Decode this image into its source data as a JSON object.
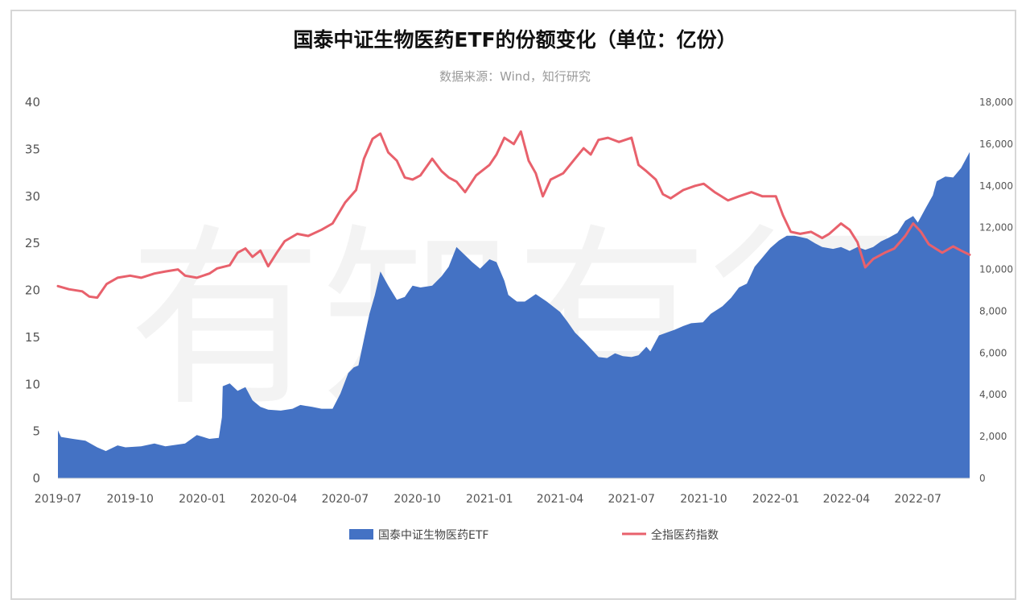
{
  "chart_data": {
    "type": "area+line",
    "title": "国泰中证生物医药ETF的份额变化（单位：亿份）",
    "subtitle": "数据来源：Wind，知行研究",
    "watermark": "有知有行",
    "x_ticks": [
      "2019-07",
      "2019-10",
      "2020-01",
      "2020-04",
      "2020-07",
      "2020-10",
      "2021-01",
      "2021-04",
      "2021-07",
      "2021-10",
      "2022-01",
      "2022-04",
      "2022-07"
    ],
    "y_left": {
      "range": [
        0,
        40
      ],
      "ticks": [
        "0",
        "5",
        "10",
        "15",
        "20",
        "25",
        "30",
        "35",
        "40"
      ]
    },
    "y_right": {
      "range": [
        0,
        18000
      ],
      "ticks": [
        "0",
        "2,000",
        "4,000",
        "6,000",
        "8,000",
        "10,000",
        "12,000",
        "14,000",
        "16,000",
        "18,000"
      ]
    },
    "series": [
      {
        "name": "国泰中证生物医药ETF",
        "type": "area",
        "axis": "left",
        "color": "#4472c4",
        "points": [
          [
            "2019-07-01",
            5.1
          ],
          [
            "2019-07-05",
            4.4
          ],
          [
            "2019-07-20",
            4.2
          ],
          [
            "2019-08-05",
            4.0
          ],
          [
            "2019-08-20",
            3.3
          ],
          [
            "2019-08-31",
            2.9
          ],
          [
            "2019-09-15",
            3.5
          ],
          [
            "2019-09-25",
            3.3
          ],
          [
            "2019-10-15",
            3.4
          ],
          [
            "2019-11-01",
            3.7
          ],
          [
            "2019-11-15",
            3.4
          ],
          [
            "2019-12-01",
            3.6
          ],
          [
            "2019-12-10",
            3.7
          ],
          [
            "2019-12-25",
            4.6
          ],
          [
            "2020-01-10",
            4.2
          ],
          [
            "2020-01-22",
            4.3
          ],
          [
            "2020-01-26",
            6.5
          ],
          [
            "2020-01-27",
            9.8
          ],
          [
            "2020-02-05",
            10.1
          ],
          [
            "2020-02-15",
            9.3
          ],
          [
            "2020-02-25",
            9.7
          ],
          [
            "2020-03-05",
            8.3
          ],
          [
            "2020-03-15",
            7.6
          ],
          [
            "2020-03-25",
            7.3
          ],
          [
            "2020-04-10",
            7.2
          ],
          [
            "2020-04-25",
            7.4
          ],
          [
            "2020-05-05",
            7.8
          ],
          [
            "2020-05-20",
            7.6
          ],
          [
            "2020-06-01",
            7.4
          ],
          [
            "2020-06-15",
            7.4
          ],
          [
            "2020-06-25",
            9.0
          ],
          [
            "2020-07-05",
            11.2
          ],
          [
            "2020-07-12",
            11.8
          ],
          [
            "2020-07-18",
            12.0
          ],
          [
            "2020-07-25",
            14.8
          ],
          [
            "2020-08-01",
            17.5
          ],
          [
            "2020-08-08",
            19.5
          ],
          [
            "2020-08-15",
            22.0
          ],
          [
            "2020-08-25",
            20.5
          ],
          [
            "2020-09-05",
            19.0
          ],
          [
            "2020-09-15",
            19.3
          ],
          [
            "2020-09-25",
            20.5
          ],
          [
            "2020-10-05",
            20.3
          ],
          [
            "2020-10-20",
            20.5
          ],
          [
            "2020-11-01",
            21.5
          ],
          [
            "2020-11-10",
            22.5
          ],
          [
            "2020-11-20",
            24.6
          ],
          [
            "2020-11-30",
            23.8
          ],
          [
            "2020-12-10",
            23.0
          ],
          [
            "2020-12-20",
            22.3
          ],
          [
            "2021-01-01",
            23.3
          ],
          [
            "2021-01-10",
            23.0
          ],
          [
            "2021-01-20",
            21.0
          ],
          [
            "2021-01-25",
            19.5
          ],
          [
            "2021-02-05",
            18.8
          ],
          [
            "2021-02-15",
            18.8
          ],
          [
            "2021-03-01",
            19.6
          ],
          [
            "2021-03-15",
            18.8
          ],
          [
            "2021-04-01",
            17.7
          ],
          [
            "2021-04-10",
            16.7
          ],
          [
            "2021-04-20",
            15.5
          ],
          [
            "2021-05-01",
            14.6
          ],
          [
            "2021-05-10",
            13.8
          ],
          [
            "2021-05-20",
            12.9
          ],
          [
            "2021-05-31",
            12.8
          ],
          [
            "2021-06-10",
            13.3
          ],
          [
            "2021-06-20",
            13.0
          ],
          [
            "2021-07-01",
            12.9
          ],
          [
            "2021-07-10",
            13.1
          ],
          [
            "2021-07-20",
            14.0
          ],
          [
            "2021-07-25",
            13.5
          ],
          [
            "2021-08-05",
            15.2
          ],
          [
            "2021-08-15",
            15.5
          ],
          [
            "2021-08-25",
            15.8
          ],
          [
            "2021-09-05",
            16.2
          ],
          [
            "2021-09-15",
            16.5
          ],
          [
            "2021-09-30",
            16.6
          ],
          [
            "2021-10-10",
            17.5
          ],
          [
            "2021-10-25",
            18.3
          ],
          [
            "2021-11-05",
            19.2
          ],
          [
            "2021-11-15",
            20.3
          ],
          [
            "2021-11-25",
            20.7
          ],
          [
            "2021-12-05",
            22.5
          ],
          [
            "2021-12-15",
            23.5
          ],
          [
            "2021-12-25",
            24.5
          ],
          [
            "2022-01-05",
            25.3
          ],
          [
            "2022-01-15",
            25.8
          ],
          [
            "2022-01-25",
            25.8
          ],
          [
            "2022-02-10",
            25.5
          ],
          [
            "2022-02-20",
            25.0
          ],
          [
            "2022-03-01",
            24.6
          ],
          [
            "2022-03-15",
            24.4
          ],
          [
            "2022-03-25",
            24.6
          ],
          [
            "2022-04-05",
            24.2
          ],
          [
            "2022-04-15",
            24.6
          ],
          [
            "2022-04-25",
            24.3
          ],
          [
            "2022-05-05",
            24.6
          ],
          [
            "2022-05-15",
            25.2
          ],
          [
            "2022-05-25",
            25.6
          ],
          [
            "2022-06-05",
            26.1
          ],
          [
            "2022-06-15",
            27.4
          ],
          [
            "2022-06-25",
            27.9
          ],
          [
            "2022-07-01",
            27.2
          ],
          [
            "2022-07-10",
            28.6
          ],
          [
            "2022-07-20",
            30.1
          ],
          [
            "2022-07-25",
            31.6
          ],
          [
            "2022-08-05",
            32.1
          ],
          [
            "2022-08-15",
            32.0
          ],
          [
            "2022-08-25",
            33.0
          ],
          [
            "2022-09-05",
            34.7
          ]
        ]
      },
      {
        "name": "全指医药指数",
        "type": "line",
        "axis": "right",
        "color": "#e8616c",
        "points": [
          [
            "2019-07-01",
            9200
          ],
          [
            "2019-07-15",
            9050
          ],
          [
            "2019-08-01",
            8950
          ],
          [
            "2019-08-10",
            8700
          ],
          [
            "2019-08-20",
            8650
          ],
          [
            "2019-09-01",
            9300
          ],
          [
            "2019-09-15",
            9600
          ],
          [
            "2019-10-01",
            9700
          ],
          [
            "2019-10-15",
            9600
          ],
          [
            "2019-11-01",
            9800
          ],
          [
            "2019-11-15",
            9900
          ],
          [
            "2019-12-01",
            10000
          ],
          [
            "2019-12-10",
            9700
          ],
          [
            "2019-12-25",
            9600
          ],
          [
            "2020-01-10",
            9800
          ],
          [
            "2020-01-20",
            10050
          ],
          [
            "2020-02-05",
            10200
          ],
          [
            "2020-02-15",
            10800
          ],
          [
            "2020-02-25",
            11000
          ],
          [
            "2020-03-05",
            10600
          ],
          [
            "2020-03-15",
            10900
          ],
          [
            "2020-03-25",
            10150
          ],
          [
            "2020-04-05",
            10800
          ],
          [
            "2020-04-15",
            11350
          ],
          [
            "2020-05-01",
            11700
          ],
          [
            "2020-05-15",
            11600
          ],
          [
            "2020-06-01",
            11900
          ],
          [
            "2020-06-15",
            12200
          ],
          [
            "2020-07-01",
            13200
          ],
          [
            "2020-07-15",
            13800
          ],
          [
            "2020-07-25",
            15300
          ],
          [
            "2020-08-05",
            16250
          ],
          [
            "2020-08-15",
            16500
          ],
          [
            "2020-08-25",
            15600
          ],
          [
            "2020-09-05",
            15200
          ],
          [
            "2020-09-15",
            14400
          ],
          [
            "2020-09-25",
            14300
          ],
          [
            "2020-10-05",
            14500
          ],
          [
            "2020-10-20",
            15300
          ],
          [
            "2020-11-01",
            14700
          ],
          [
            "2020-11-10",
            14400
          ],
          [
            "2020-11-20",
            14200
          ],
          [
            "2020-12-01",
            13700
          ],
          [
            "2020-12-15",
            14500
          ],
          [
            "2021-01-01",
            15000
          ],
          [
            "2021-01-10",
            15500
          ],
          [
            "2021-01-20",
            16300
          ],
          [
            "2021-02-01",
            16000
          ],
          [
            "2021-02-10",
            16600
          ],
          [
            "2021-02-20",
            15200
          ],
          [
            "2021-03-01",
            14600
          ],
          [
            "2021-03-10",
            13500
          ],
          [
            "2021-03-20",
            14300
          ],
          [
            "2021-04-05",
            14600
          ],
          [
            "2021-04-20",
            15300
          ],
          [
            "2021-05-01",
            15800
          ],
          [
            "2021-05-10",
            15500
          ],
          [
            "2021-05-20",
            16200
          ],
          [
            "2021-06-01",
            16300
          ],
          [
            "2021-06-15",
            16100
          ],
          [
            "2021-07-01",
            16300
          ],
          [
            "2021-07-10",
            15000
          ],
          [
            "2021-07-20",
            14700
          ],
          [
            "2021-08-01",
            14300
          ],
          [
            "2021-08-10",
            13600
          ],
          [
            "2021-08-20",
            13400
          ],
          [
            "2021-09-05",
            13800
          ],
          [
            "2021-09-20",
            14000
          ],
          [
            "2021-10-01",
            14100
          ],
          [
            "2021-10-15",
            13700
          ],
          [
            "2021-11-01",
            13300
          ],
          [
            "2021-11-15",
            13500
          ],
          [
            "2021-12-01",
            13700
          ],
          [
            "2021-12-15",
            13500
          ],
          [
            "2022-01-01",
            13500
          ],
          [
            "2022-01-10",
            12600
          ],
          [
            "2022-01-20",
            11800
          ],
          [
            "2022-02-01",
            11700
          ],
          [
            "2022-02-15",
            11800
          ],
          [
            "2022-03-01",
            11500
          ],
          [
            "2022-03-10",
            11700
          ],
          [
            "2022-03-25",
            12200
          ],
          [
            "2022-04-05",
            11900
          ],
          [
            "2022-04-15",
            11300
          ],
          [
            "2022-04-25",
            10100
          ],
          [
            "2022-05-05",
            10500
          ],
          [
            "2022-05-20",
            10800
          ],
          [
            "2022-06-01",
            11000
          ],
          [
            "2022-06-15",
            11600
          ],
          [
            "2022-06-25",
            12200
          ],
          [
            "2022-07-05",
            11800
          ],
          [
            "2022-07-15",
            11200
          ],
          [
            "2022-08-01",
            10800
          ],
          [
            "2022-08-15",
            11100
          ],
          [
            "2022-08-25",
            10900
          ],
          [
            "2022-09-05",
            10700
          ]
        ]
      }
    ],
    "legend_position": "bottom",
    "grid": false
  }
}
